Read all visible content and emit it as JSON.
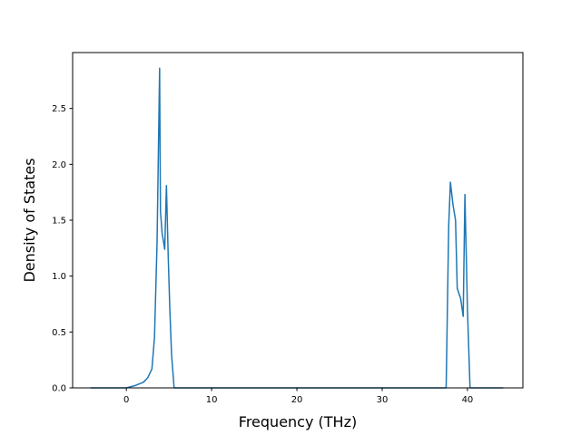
{
  "chart_data": {
    "type": "line",
    "title": "",
    "xlabel": "Frequency (THz)",
    "ylabel": "Density of States",
    "xlim": [
      -6.3,
      46.5
    ],
    "ylim": [
      0.0,
      3.0
    ],
    "x_ticks": [
      0,
      10,
      20,
      30,
      40
    ],
    "x_tick_labels": [
      "0",
      "10",
      "20",
      "30",
      "40"
    ],
    "y_ticks": [
      0.0,
      0.5,
      1.0,
      1.5,
      2.0,
      2.5
    ],
    "y_tick_labels": [
      "0.0",
      "0.5",
      "1.0",
      "1.5",
      "2.0",
      "2.5"
    ],
    "grid": false,
    "line_color": "#1f77b4",
    "series": [
      {
        "x": [
          -4.2,
          0.0,
          1.0,
          2.0,
          2.5,
          3.0,
          3.3,
          3.6,
          3.9,
          4.0,
          4.2,
          4.5,
          4.7,
          4.9,
          5.1,
          5.3,
          5.6,
          5.9,
          6.5,
          20.0,
          37.5,
          37.8,
          38.0,
          38.3,
          38.6,
          38.8,
          39.2,
          39.5,
          39.7,
          40.0,
          40.3,
          41.0,
          44.2
        ],
        "y": [
          0.0,
          0.0,
          0.02,
          0.05,
          0.09,
          0.17,
          0.45,
          1.3,
          2.86,
          1.58,
          1.38,
          1.24,
          1.81,
          1.2,
          0.7,
          0.3,
          0.0,
          0.0,
          0.0,
          0.0,
          0.0,
          1.45,
          1.84,
          1.64,
          1.5,
          0.89,
          0.8,
          0.64,
          1.73,
          0.7,
          0.0,
          0.0,
          0.0
        ]
      }
    ]
  }
}
